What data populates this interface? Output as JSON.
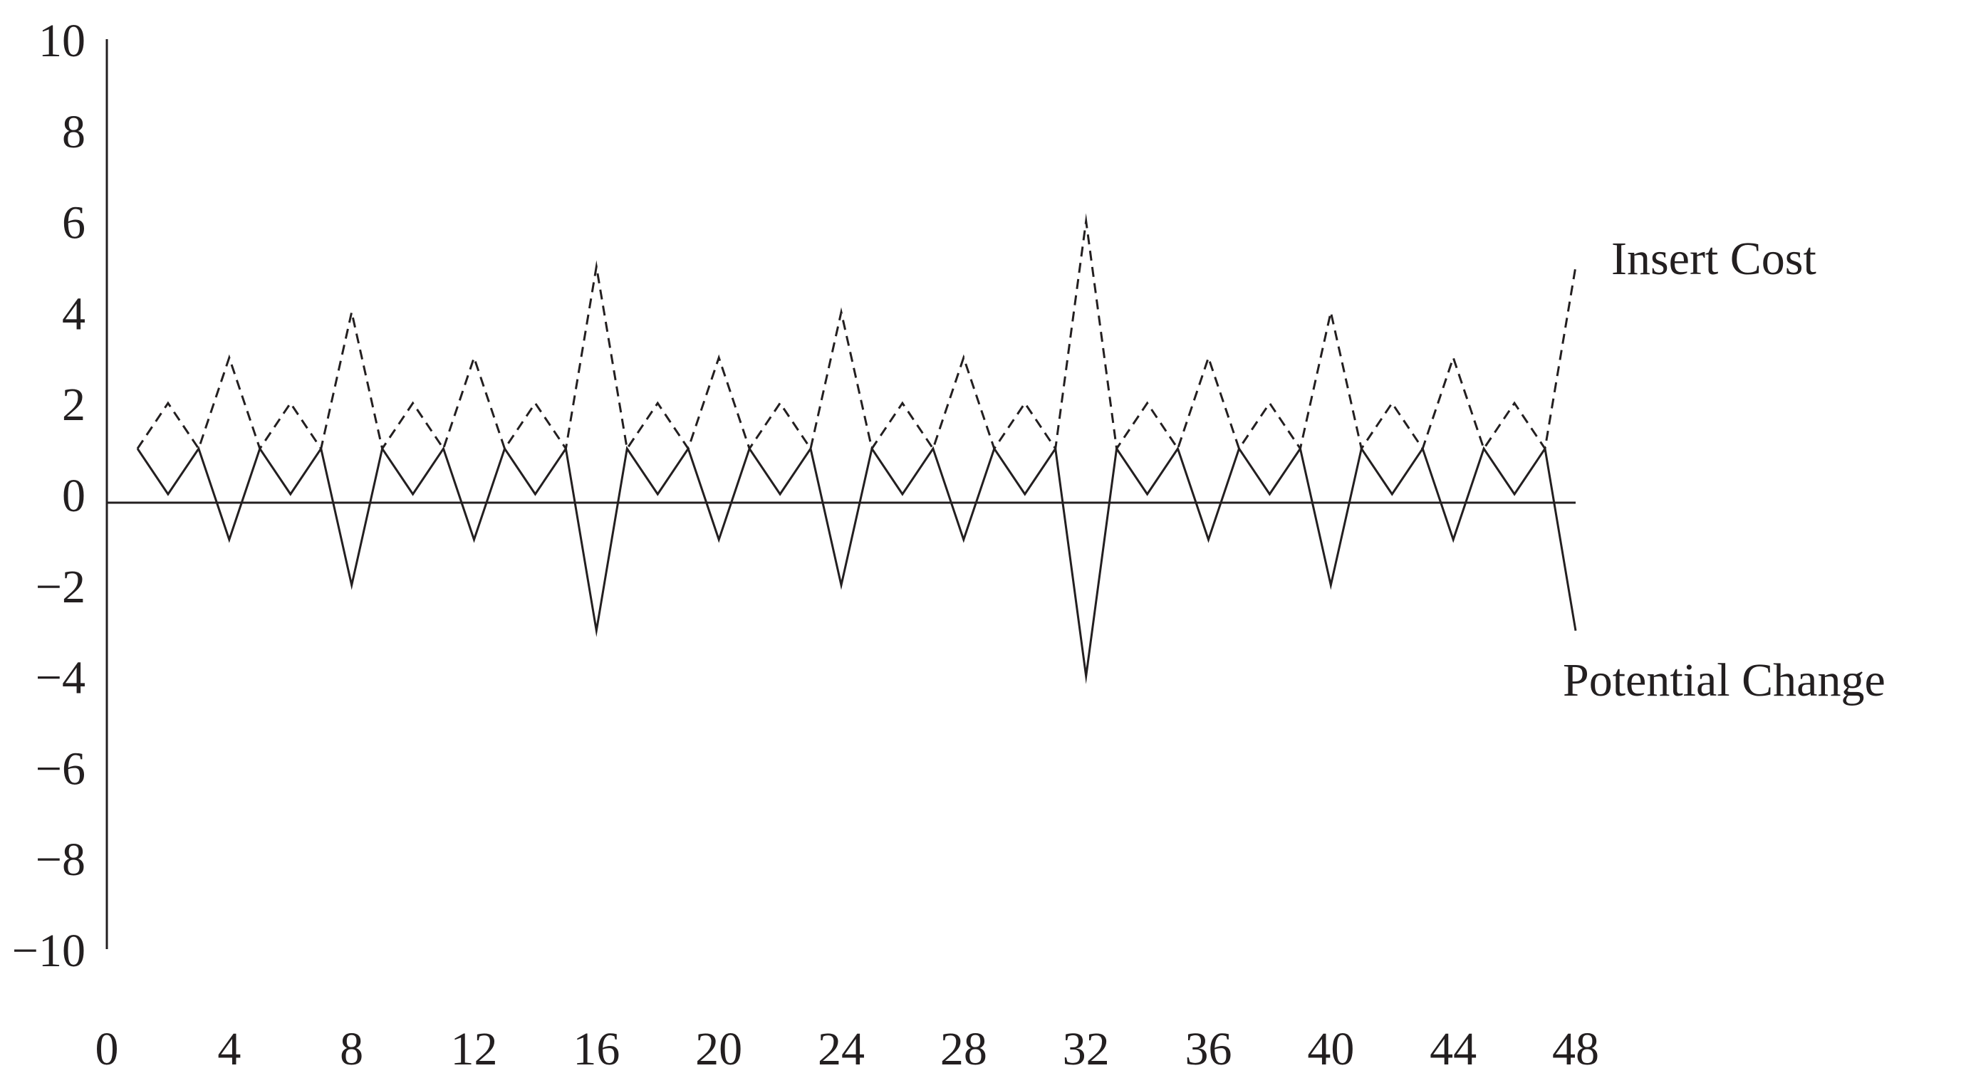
{
  "chart_data": {
    "type": "line",
    "xlim": [
      0,
      48
    ],
    "ylim": [
      -10,
      10
    ],
    "x_ticks": [
      "0",
      "4",
      "8",
      "12",
      "16",
      "20",
      "24",
      "28",
      "32",
      "36",
      "40",
      "44",
      "48"
    ],
    "y_ticks": [
      "10",
      "8",
      "6",
      "4",
      "2",
      "0",
      "−2",
      "−4",
      "−6",
      "−8",
      "−10"
    ],
    "y_tick_values": [
      10,
      8,
      6,
      4,
      2,
      0,
      -2,
      -4,
      -6,
      -8,
      -10
    ],
    "series": [
      {
        "name": "Insert Cost",
        "style": "dashed",
        "color": "#231f20",
        "x": [
          1,
          2,
          3,
          4,
          5,
          6,
          7,
          8,
          9,
          10,
          11,
          12,
          13,
          14,
          15,
          16,
          17,
          18,
          19,
          20,
          21,
          22,
          23,
          24,
          25,
          26,
          27,
          28,
          29,
          30,
          31,
          32,
          33,
          34,
          35,
          36,
          37,
          38,
          39,
          40,
          41,
          42,
          43,
          44,
          45,
          46,
          47,
          48
        ],
        "y": [
          1,
          2,
          1,
          3,
          1,
          2,
          1,
          4,
          1,
          2,
          1,
          3,
          1,
          2,
          1,
          5,
          1,
          2,
          1,
          3,
          1,
          2,
          1,
          4,
          1,
          2,
          1,
          3,
          1,
          2,
          1,
          6,
          1,
          2,
          1,
          3,
          1,
          2,
          1,
          4,
          1,
          2,
          1,
          3,
          1,
          2,
          1,
          5
        ]
      },
      {
        "name": "Potential Change",
        "style": "solid",
        "color": "#231f20",
        "x": [
          1,
          2,
          3,
          4,
          5,
          6,
          7,
          8,
          9,
          10,
          11,
          12,
          13,
          14,
          15,
          16,
          17,
          18,
          19,
          20,
          21,
          22,
          23,
          24,
          25,
          26,
          27,
          28,
          29,
          30,
          31,
          32,
          33,
          34,
          35,
          36,
          37,
          38,
          39,
          40,
          41,
          42,
          43,
          44,
          45,
          46,
          47,
          48
        ],
        "y": [
          1,
          0,
          1,
          -1,
          1,
          0,
          1,
          -2,
          1,
          0,
          1,
          -1,
          1,
          0,
          1,
          -3,
          1,
          0,
          1,
          -1,
          1,
          0,
          1,
          -2,
          1,
          0,
          1,
          -1,
          1,
          0,
          1,
          -4,
          1,
          0,
          1,
          -1,
          1,
          0,
          1,
          -2,
          1,
          0,
          1,
          -1,
          1,
          0,
          1,
          -3
        ]
      }
    ],
    "grid": false,
    "legend": "inline labels at right end of each series"
  }
}
